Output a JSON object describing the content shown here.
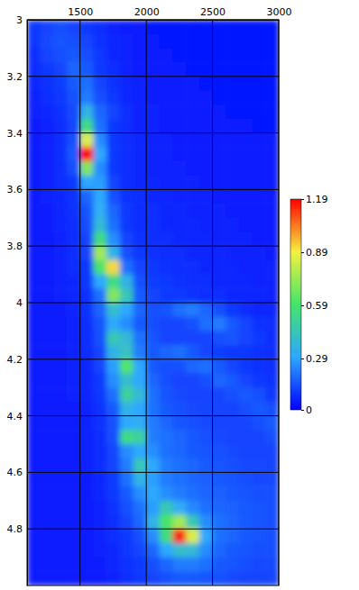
{
  "chart_data": {
    "type": "heatmap",
    "x": [
      1150,
      1250,
      1350,
      1450,
      1550,
      1650,
      1750,
      1850,
      1950,
      2050,
      2150,
      2250,
      2350,
      2450,
      2550,
      2650,
      2750,
      2850,
      2950
    ],
    "y": [
      3.025,
      3.075,
      3.125,
      3.175,
      3.225,
      3.275,
      3.325,
      3.375,
      3.425,
      3.475,
      3.525,
      3.575,
      3.625,
      3.675,
      3.725,
      3.775,
      3.825,
      3.875,
      3.925,
      3.975,
      4.025,
      4.075,
      4.125,
      4.175,
      4.225,
      4.275,
      4.325,
      4.375,
      4.425,
      4.475,
      4.525,
      4.575,
      4.625,
      4.675,
      4.725,
      4.775,
      4.825,
      4.875,
      4.925,
      4.975
    ],
    "z": [
      [
        0.1,
        0.12,
        0.14,
        0.12,
        0.1,
        0.08,
        0.06,
        0.05,
        0.05,
        0.04,
        0.04,
        0.04,
        0.04,
        0.04,
        0.04,
        0.04,
        0.04,
        0.04,
        0.04
      ],
      [
        0.1,
        0.13,
        0.15,
        0.14,
        0.12,
        0.09,
        0.07,
        0.06,
        0.05,
        0.05,
        0.04,
        0.04,
        0.04,
        0.04,
        0.04,
        0.04,
        0.04,
        0.04,
        0.04
      ],
      [
        0.08,
        0.12,
        0.14,
        0.16,
        0.14,
        0.1,
        0.07,
        0.06,
        0.05,
        0.05,
        0.05,
        0.04,
        0.04,
        0.04,
        0.04,
        0.04,
        0.04,
        0.04,
        0.04
      ],
      [
        0.08,
        0.1,
        0.12,
        0.18,
        0.16,
        0.1,
        0.08,
        0.06,
        0.05,
        0.05,
        0.05,
        0.05,
        0.04,
        0.04,
        0.04,
        0.04,
        0.04,
        0.04,
        0.04
      ],
      [
        0.07,
        0.09,
        0.11,
        0.16,
        0.2,
        0.12,
        0.09,
        0.07,
        0.06,
        0.05,
        0.05,
        0.05,
        0.05,
        0.04,
        0.04,
        0.04,
        0.04,
        0.04,
        0.04
      ],
      [
        0.06,
        0.08,
        0.1,
        0.14,
        0.22,
        0.14,
        0.1,
        0.07,
        0.06,
        0.05,
        0.05,
        0.05,
        0.05,
        0.05,
        0.04,
        0.04,
        0.04,
        0.04,
        0.04
      ],
      [
        0.06,
        0.07,
        0.09,
        0.13,
        0.35,
        0.18,
        0.12,
        0.08,
        0.06,
        0.06,
        0.05,
        0.05,
        0.05,
        0.05,
        0.05,
        0.04,
        0.04,
        0.04,
        0.04
      ],
      [
        0.05,
        0.06,
        0.08,
        0.12,
        0.55,
        0.2,
        0.1,
        0.08,
        0.06,
        0.06,
        0.05,
        0.05,
        0.05,
        0.05,
        0.05,
        0.05,
        0.05,
        0.04,
        0.04
      ],
      [
        0.05,
        0.06,
        0.08,
        0.14,
        0.85,
        0.25,
        0.1,
        0.08,
        0.07,
        0.06,
        0.06,
        0.05,
        0.05,
        0.05,
        0.05,
        0.05,
        0.05,
        0.05,
        0.05
      ],
      [
        0.05,
        0.06,
        0.08,
        0.16,
        1.19,
        0.3,
        0.1,
        0.08,
        0.07,
        0.06,
        0.06,
        0.05,
        0.05,
        0.05,
        0.05,
        0.05,
        0.05,
        0.05,
        0.05
      ],
      [
        0.05,
        0.06,
        0.08,
        0.14,
        0.7,
        0.25,
        0.1,
        0.08,
        0.07,
        0.06,
        0.06,
        0.06,
        0.05,
        0.05,
        0.05,
        0.05,
        0.05,
        0.05,
        0.05
      ],
      [
        0.05,
        0.06,
        0.08,
        0.1,
        0.3,
        0.28,
        0.12,
        0.08,
        0.07,
        0.07,
        0.06,
        0.06,
        0.06,
        0.05,
        0.05,
        0.05,
        0.05,
        0.05,
        0.05
      ],
      [
        0.05,
        0.06,
        0.07,
        0.09,
        0.18,
        0.3,
        0.14,
        0.09,
        0.08,
        0.07,
        0.07,
        0.06,
        0.06,
        0.06,
        0.05,
        0.05,
        0.05,
        0.05,
        0.05
      ],
      [
        0.05,
        0.05,
        0.07,
        0.09,
        0.15,
        0.32,
        0.18,
        0.1,
        0.08,
        0.08,
        0.07,
        0.07,
        0.06,
        0.06,
        0.06,
        0.05,
        0.05,
        0.05,
        0.05
      ],
      [
        0.05,
        0.05,
        0.07,
        0.08,
        0.14,
        0.38,
        0.2,
        0.1,
        0.08,
        0.08,
        0.07,
        0.07,
        0.07,
        0.06,
        0.06,
        0.06,
        0.05,
        0.05,
        0.05
      ],
      [
        0.05,
        0.05,
        0.06,
        0.08,
        0.12,
        0.55,
        0.25,
        0.12,
        0.09,
        0.08,
        0.08,
        0.07,
        0.07,
        0.07,
        0.06,
        0.06,
        0.06,
        0.05,
        0.05
      ],
      [
        0.05,
        0.05,
        0.06,
        0.08,
        0.12,
        0.75,
        0.35,
        0.14,
        0.1,
        0.09,
        0.08,
        0.08,
        0.07,
        0.07,
        0.07,
        0.06,
        0.06,
        0.06,
        0.05
      ],
      [
        0.05,
        0.05,
        0.06,
        0.08,
        0.1,
        0.6,
        0.92,
        0.2,
        0.12,
        0.1,
        0.09,
        0.08,
        0.08,
        0.07,
        0.07,
        0.07,
        0.06,
        0.06,
        0.06
      ],
      [
        0.05,
        0.05,
        0.06,
        0.07,
        0.1,
        0.3,
        0.55,
        0.35,
        0.14,
        0.11,
        0.1,
        0.09,
        0.08,
        0.08,
        0.07,
        0.07,
        0.07,
        0.06,
        0.06
      ],
      [
        0.05,
        0.05,
        0.06,
        0.07,
        0.09,
        0.2,
        0.7,
        0.45,
        0.16,
        0.12,
        0.1,
        0.1,
        0.09,
        0.08,
        0.08,
        0.07,
        0.07,
        0.07,
        0.06
      ],
      [
        0.05,
        0.05,
        0.05,
        0.07,
        0.09,
        0.18,
        0.4,
        0.3,
        0.18,
        0.14,
        0.15,
        0.2,
        0.22,
        0.18,
        0.14,
        0.1,
        0.08,
        0.07,
        0.07
      ],
      [
        0.05,
        0.05,
        0.05,
        0.06,
        0.08,
        0.15,
        0.3,
        0.25,
        0.16,
        0.14,
        0.12,
        0.12,
        0.14,
        0.2,
        0.22,
        0.16,
        0.12,
        0.09,
        0.08
      ],
      [
        0.05,
        0.05,
        0.05,
        0.06,
        0.08,
        0.14,
        0.45,
        0.38,
        0.2,
        0.15,
        0.12,
        0.12,
        0.12,
        0.12,
        0.14,
        0.15,
        0.12,
        0.1,
        0.08
      ],
      [
        0.05,
        0.05,
        0.05,
        0.06,
        0.08,
        0.12,
        0.35,
        0.42,
        0.22,
        0.16,
        0.18,
        0.2,
        0.16,
        0.12,
        0.11,
        0.1,
        0.1,
        0.09,
        0.08
      ],
      [
        0.05,
        0.05,
        0.05,
        0.06,
        0.07,
        0.12,
        0.28,
        0.62,
        0.3,
        0.16,
        0.14,
        0.14,
        0.18,
        0.2,
        0.16,
        0.12,
        0.1,
        0.09,
        0.08
      ],
      [
        0.05,
        0.05,
        0.05,
        0.06,
        0.07,
        0.1,
        0.25,
        0.4,
        0.3,
        0.18,
        0.14,
        0.12,
        0.12,
        0.14,
        0.18,
        0.16,
        0.12,
        0.1,
        0.09
      ],
      [
        0.05,
        0.05,
        0.05,
        0.06,
        0.07,
        0.1,
        0.2,
        0.5,
        0.38,
        0.2,
        0.15,
        0.13,
        0.12,
        0.12,
        0.12,
        0.14,
        0.16,
        0.14,
        0.1
      ],
      [
        0.05,
        0.05,
        0.05,
        0.05,
        0.06,
        0.09,
        0.16,
        0.35,
        0.3,
        0.2,
        0.16,
        0.14,
        0.13,
        0.12,
        0.12,
        0.12,
        0.14,
        0.16,
        0.14
      ],
      [
        0.05,
        0.05,
        0.05,
        0.05,
        0.06,
        0.09,
        0.14,
        0.3,
        0.32,
        0.22,
        0.18,
        0.15,
        0.14,
        0.13,
        0.12,
        0.12,
        0.12,
        0.14,
        0.16
      ],
      [
        0.05,
        0.05,
        0.05,
        0.05,
        0.06,
        0.08,
        0.14,
        0.55,
        0.5,
        0.22,
        0.2,
        0.18,
        0.16,
        0.14,
        0.13,
        0.12,
        0.12,
        0.12,
        0.14
      ],
      [
        0.05,
        0.05,
        0.05,
        0.05,
        0.06,
        0.08,
        0.12,
        0.25,
        0.3,
        0.25,
        0.2,
        0.18,
        0.16,
        0.15,
        0.14,
        0.13,
        0.12,
        0.12,
        0.12
      ],
      [
        0.05,
        0.05,
        0.05,
        0.05,
        0.06,
        0.08,
        0.12,
        0.22,
        0.45,
        0.3,
        0.22,
        0.2,
        0.18,
        0.16,
        0.15,
        0.14,
        0.13,
        0.13,
        0.12
      ],
      [
        0.05,
        0.05,
        0.05,
        0.05,
        0.05,
        0.07,
        0.1,
        0.2,
        0.35,
        0.28,
        0.22,
        0.2,
        0.18,
        0.17,
        0.16,
        0.15,
        0.14,
        0.13,
        0.13
      ],
      [
        0.05,
        0.05,
        0.05,
        0.05,
        0.05,
        0.07,
        0.1,
        0.16,
        0.25,
        0.3,
        0.25,
        0.22,
        0.2,
        0.18,
        0.17,
        0.16,
        0.15,
        0.14,
        0.14
      ],
      [
        0.05,
        0.05,
        0.05,
        0.05,
        0.05,
        0.06,
        0.09,
        0.14,
        0.2,
        0.28,
        0.45,
        0.32,
        0.24,
        0.2,
        0.18,
        0.17,
        0.16,
        0.15,
        0.14
      ],
      [
        0.05,
        0.05,
        0.05,
        0.05,
        0.05,
        0.06,
        0.08,
        0.12,
        0.18,
        0.35,
        0.6,
        0.75,
        0.45,
        0.25,
        0.2,
        0.18,
        0.16,
        0.15,
        0.14
      ],
      [
        0.05,
        0.05,
        0.05,
        0.05,
        0.05,
        0.06,
        0.08,
        0.1,
        0.14,
        0.25,
        0.55,
        1.15,
        0.85,
        0.3,
        0.2,
        0.18,
        0.16,
        0.15,
        0.14
      ],
      [
        0.05,
        0.05,
        0.05,
        0.05,
        0.05,
        0.06,
        0.07,
        0.1,
        0.12,
        0.18,
        0.3,
        0.4,
        0.38,
        0.25,
        0.18,
        0.16,
        0.15,
        0.14,
        0.14
      ],
      [
        0.05,
        0.05,
        0.05,
        0.05,
        0.05,
        0.05,
        0.07,
        0.09,
        0.1,
        0.14,
        0.18,
        0.22,
        0.22,
        0.2,
        0.16,
        0.15,
        0.14,
        0.13,
        0.13
      ],
      [
        0.05,
        0.05,
        0.05,
        0.05,
        0.05,
        0.05,
        0.06,
        0.08,
        0.1,
        0.12,
        0.14,
        0.16,
        0.16,
        0.15,
        0.14,
        0.13,
        0.12,
        0.12,
        0.12
      ]
    ],
    "xlim": [
      1100,
      3000
    ],
    "xticks": [
      1500,
      2000,
      2500,
      3000
    ],
    "ylim": [
      3,
      5
    ],
    "yticks": [
      3,
      3.2,
      3.4,
      3.6,
      3.8,
      4,
      4.2,
      4.4,
      4.6,
      4.8
    ],
    "grid": true,
    "colorbar": {
      "lim": [
        0,
        1.19
      ],
      "ticks": [
        0,
        0.29,
        0.59,
        0.89,
        1.19
      ]
    }
  }
}
